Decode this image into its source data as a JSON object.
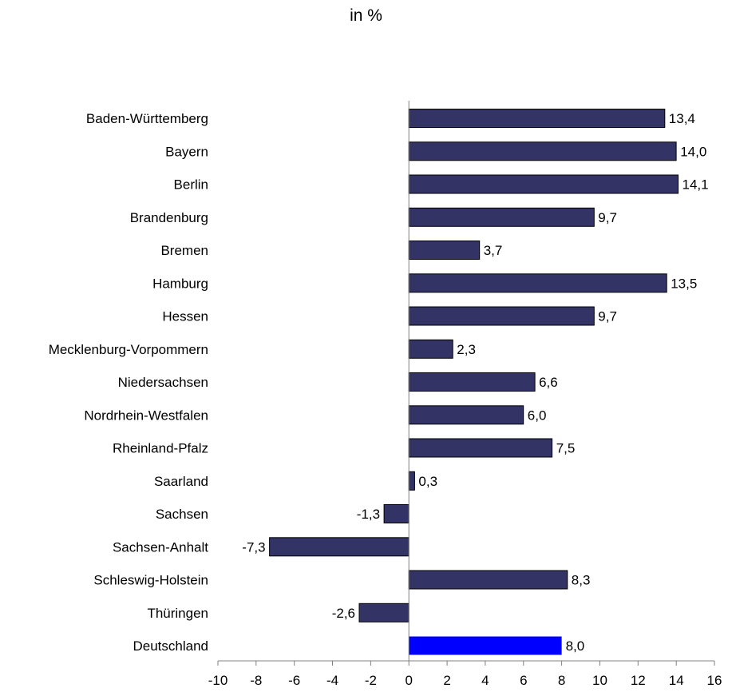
{
  "chart_data": {
    "type": "bar",
    "orientation": "horizontal",
    "title": "in %",
    "categories": [
      "Baden-Württemberg",
      "Bayern",
      "Berlin",
      "Brandenburg",
      "Bremen",
      "Hamburg",
      "Hessen",
      "Mecklenburg-Vorpommern",
      "Niedersachsen",
      "Nordrhein-Westfalen",
      "Rheinland-Pfalz",
      "Saarland",
      "Sachsen",
      "Sachsen-Anhalt",
      "Schleswig-Holstein",
      "Thüringen",
      "Deutschland"
    ],
    "values": [
      13.4,
      14.0,
      14.1,
      9.7,
      3.7,
      13.5,
      9.7,
      2.3,
      6.6,
      6.0,
      7.5,
      0.3,
      -1.3,
      -7.3,
      8.3,
      -2.6,
      8.0
    ],
    "value_labels": [
      "13,4",
      "14,0",
      "14,1",
      "9,7",
      "3,7",
      "13,5",
      "9,7",
      "2,3",
      "6,6",
      "6,0",
      "7,5",
      "0,3",
      "-1,3",
      "-7,3",
      "8,3",
      "-2,6",
      "8,0"
    ],
    "xlim": [
      -10,
      16
    ],
    "xticks": [
      -10,
      -8,
      -6,
      -4,
      -2,
      0,
      2,
      4,
      6,
      8,
      10,
      12,
      14,
      16
    ],
    "xtick_labels": [
      "-10",
      "-8",
      "-6",
      "-4",
      "-2",
      "0",
      "2",
      "4",
      "6",
      "8",
      "10",
      "12",
      "14",
      "16"
    ],
    "xlabel": "",
    "ylabel": "",
    "grid": false,
    "legend": "none",
    "colors": {
      "bar": "#333366",
      "highlight_bar": "#0000ff",
      "bar_stroke": "#000000",
      "axis": "#808080",
      "text": "#000000"
    },
    "highlight_index": 16
  }
}
